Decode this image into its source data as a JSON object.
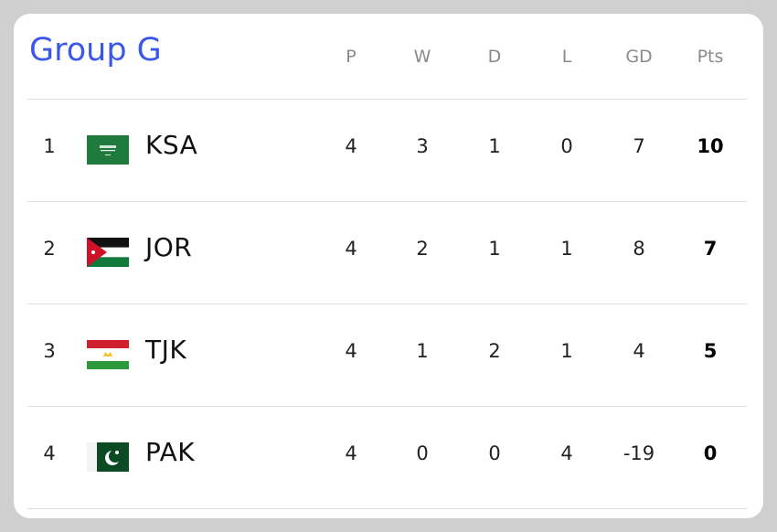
{
  "title": "Group G",
  "columns": [
    "P",
    "W",
    "D",
    "L",
    "GD",
    "Pts"
  ],
  "rows": [
    {
      "rank": 1,
      "team": "KSA",
      "stats": [
        4,
        3,
        1,
        0,
        7,
        10
      ]
    },
    {
      "rank": 2,
      "team": "JOR",
      "stats": [
        4,
        2,
        1,
        1,
        8,
        7
      ]
    },
    {
      "rank": 3,
      "team": "TJK",
      "stats": [
        4,
        1,
        2,
        1,
        4,
        5
      ]
    },
    {
      "rank": 4,
      "team": "PAK",
      "stats": [
        4,
        0,
        0,
        4,
        -19,
        0
      ]
    }
  ]
}
